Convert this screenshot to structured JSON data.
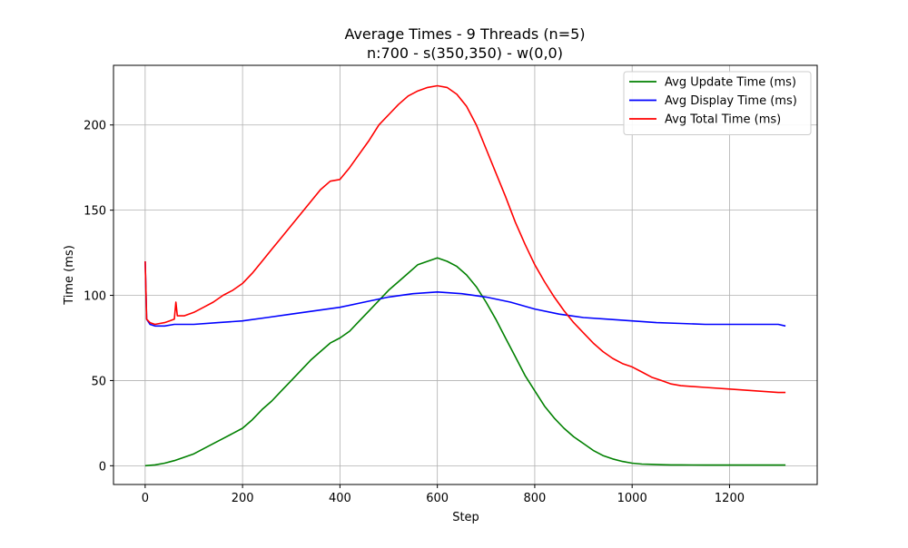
{
  "chart_data": {
    "type": "line",
    "title": "Average Times - 9 Threads (n=5)",
    "subtitle": "n:700 - s(350,350) - w(0,0)",
    "xlabel": "Step",
    "ylabel": "Time (ms)",
    "xlim": [
      -65,
      1380
    ],
    "ylim": [
      -11,
      235
    ],
    "xticks": [
      0,
      200,
      400,
      600,
      800,
      1000,
      1200
    ],
    "yticks": [
      0,
      50,
      100,
      150,
      200
    ],
    "grid": true,
    "legend_position": "upper right",
    "series": [
      {
        "name": "Avg Update Time (ms)",
        "color": "#008000",
        "x": [
          0,
          20,
          40,
          60,
          80,
          100,
          120,
          140,
          160,
          180,
          200,
          220,
          240,
          260,
          280,
          300,
          320,
          340,
          360,
          380,
          400,
          420,
          440,
          460,
          480,
          500,
          520,
          540,
          560,
          580,
          600,
          620,
          640,
          660,
          680,
          700,
          720,
          740,
          760,
          780,
          800,
          820,
          840,
          860,
          880,
          900,
          920,
          940,
          960,
          980,
          1000,
          1020,
          1040,
          1060,
          1080,
          1100,
          1150,
          1200,
          1250,
          1300,
          1315
        ],
        "y": [
          0,
          0.5,
          1.5,
          3,
          5,
          7,
          10,
          13,
          16,
          19,
          22,
          27,
          33,
          38,
          44,
          50,
          56,
          62,
          67,
          72,
          75,
          79,
          85,
          91,
          97,
          103,
          108,
          113,
          118,
          120,
          122,
          120,
          117,
          112,
          105,
          96,
          86,
          75,
          64,
          53,
          44,
          35,
          28,
          22,
          17,
          13,
          9,
          6,
          4,
          2.5,
          1.5,
          1,
          0.8,
          0.6,
          0.5,
          0.5,
          0.4,
          0.4,
          0.4,
          0.4,
          0.4
        ]
      },
      {
        "name": "Avg Display Time (ms)",
        "color": "#0000ff",
        "x": [
          0,
          3,
          10,
          20,
          30,
          40,
          60,
          80,
          100,
          150,
          200,
          250,
          300,
          350,
          400,
          450,
          500,
          550,
          600,
          650,
          700,
          750,
          800,
          850,
          900,
          950,
          1000,
          1050,
          1100,
          1150,
          1200,
          1250,
          1300,
          1315
        ],
        "y": [
          120,
          86,
          83,
          82,
          82,
          82,
          83,
          83,
          83,
          84,
          85,
          87,
          89,
          91,
          93,
          96,
          99,
          101,
          102,
          101,
          99,
          96,
          92,
          89,
          87,
          86,
          85,
          84,
          83.5,
          83,
          83,
          83,
          83,
          82
        ]
      },
      {
        "name": "Avg Total Time (ms)",
        "color": "#ff0000",
        "x": [
          0,
          3,
          10,
          20,
          30,
          40,
          50,
          60,
          63,
          66,
          80,
          100,
          120,
          140,
          160,
          180,
          200,
          220,
          240,
          260,
          280,
          300,
          320,
          340,
          360,
          380,
          400,
          420,
          440,
          460,
          480,
          500,
          520,
          540,
          560,
          580,
          600,
          620,
          640,
          660,
          680,
          700,
          720,
          740,
          760,
          780,
          800,
          820,
          840,
          860,
          880,
          900,
          920,
          940,
          960,
          980,
          1000,
          1020,
          1040,
          1060,
          1080,
          1100,
          1150,
          1200,
          1250,
          1300,
          1315
        ],
        "y": [
          120,
          86,
          84,
          83,
          83.5,
          84,
          85,
          86,
          96,
          88,
          88,
          90,
          93,
          96,
          100,
          103,
          107,
          113,
          120,
          127,
          134,
          141,
          148,
          155,
          162,
          167,
          168,
          175,
          183,
          191,
          200,
          206,
          212,
          217,
          220,
          222,
          223,
          222,
          218,
          211,
          200,
          186,
          172,
          158,
          143,
          130,
          118,
          108,
          99,
          91,
          84,
          78,
          72,
          67,
          63,
          60,
          58,
          55,
          52,
          50,
          48,
          47,
          46,
          45,
          44,
          43,
          43
        ]
      }
    ]
  }
}
